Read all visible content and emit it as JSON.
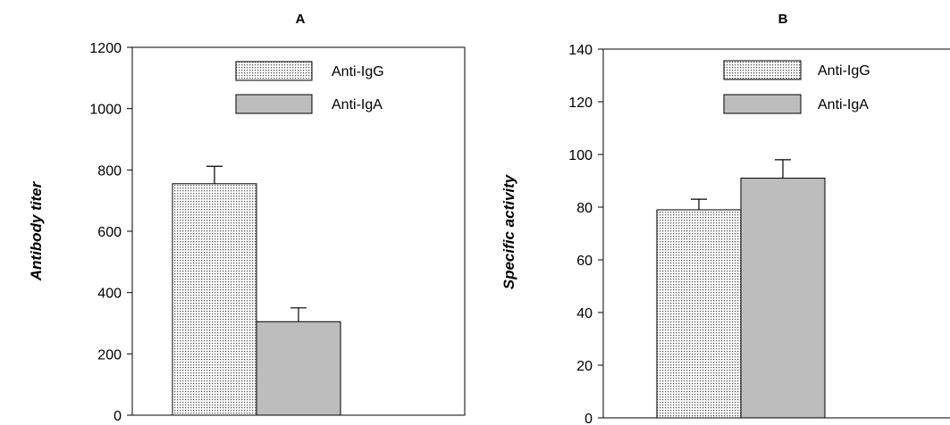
{
  "chart_data": [
    {
      "type": "bar",
      "title": "A",
      "xlabel": "",
      "ylabel": "Antibody titer",
      "ylim": [
        0,
        1200
      ],
      "yticks": [
        0,
        200,
        400,
        600,
        800,
        1000,
        1200
      ],
      "grid": false,
      "legend_position": "top-right",
      "series": [
        {
          "name": "Anti-IgG",
          "value": 755,
          "error": 57,
          "pattern": "dotted",
          "color": "#ffffff"
        },
        {
          "name": "Anti-IgA",
          "value": 305,
          "error": 45,
          "pattern": "solid",
          "color": "#bdbdbd"
        }
      ]
    },
    {
      "type": "bar",
      "title": "B",
      "xlabel": "",
      "ylabel": "Specific activity",
      "ylim": [
        0,
        140
      ],
      "yticks": [
        0,
        20,
        40,
        60,
        80,
        100,
        120,
        140
      ],
      "grid": false,
      "legend_position": "top-right",
      "series": [
        {
          "name": "Anti-IgG",
          "value": 79,
          "error": 4,
          "pattern": "dotted",
          "color": "#ffffff"
        },
        {
          "name": "Anti-IgA",
          "value": 91,
          "error": 7,
          "pattern": "solid",
          "color": "#bdbdbd"
        }
      ]
    }
  ]
}
